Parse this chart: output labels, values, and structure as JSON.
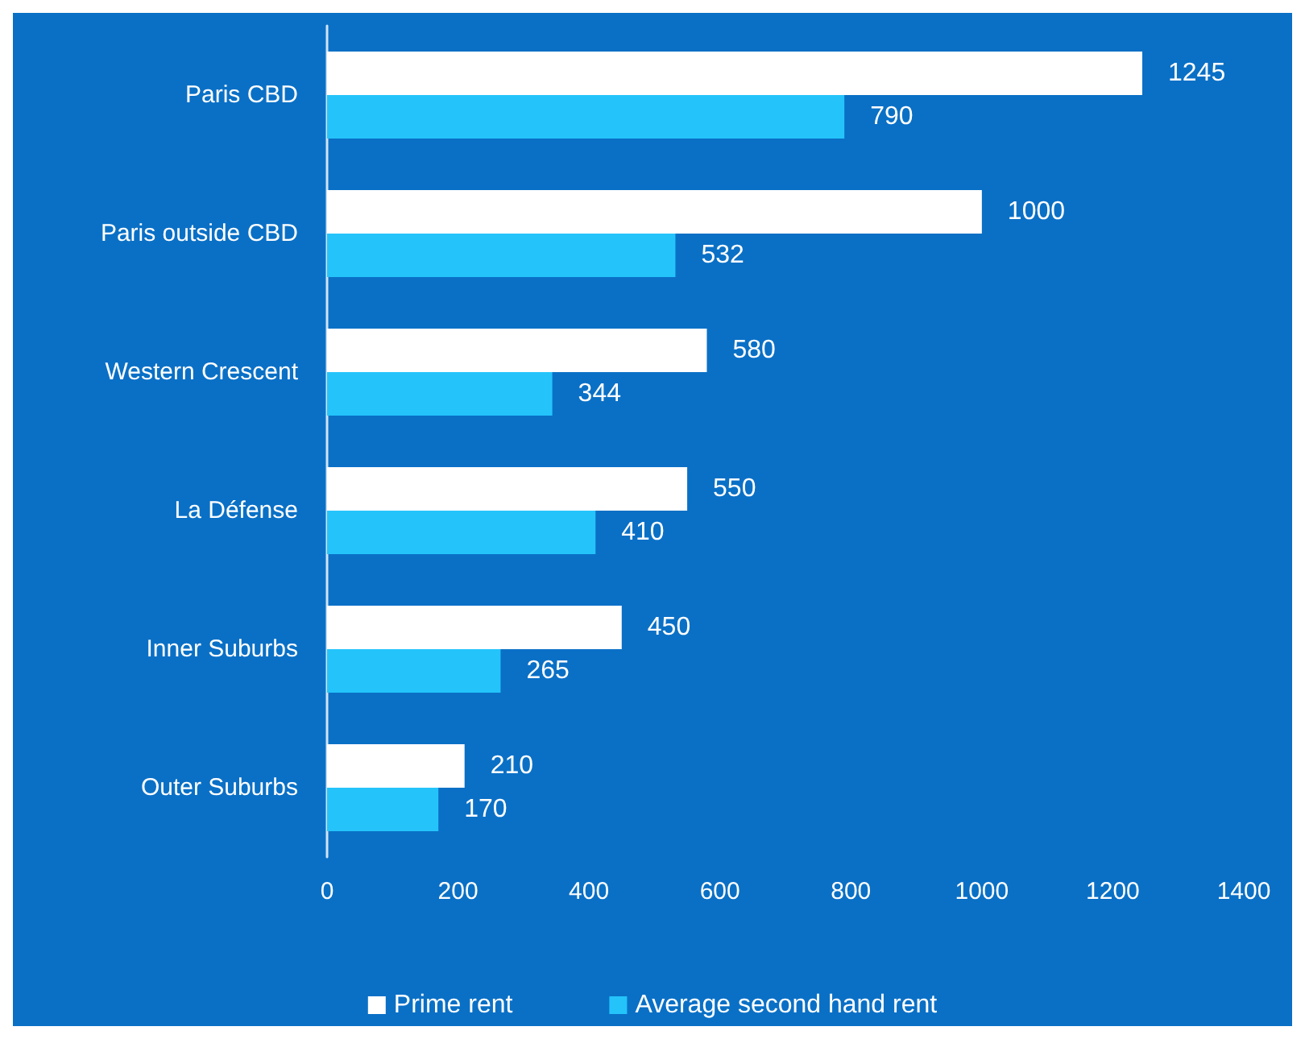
{
  "chart_data": {
    "type": "bar",
    "orientation": "horizontal",
    "categories": [
      "Paris CBD",
      "Paris outside CBD",
      "Western Crescent",
      "La Défense",
      "Inner Suburbs",
      "Outer Suburbs"
    ],
    "series": [
      {
        "name": "Prime rent",
        "color": "#ffffff",
        "values": [
          1245,
          1000,
          580,
          550,
          450,
          210
        ]
      },
      {
        "name": "Average second hand rent",
        "color": "#24c4fb",
        "values": [
          790,
          532,
          344,
          410,
          265,
          170
        ]
      }
    ],
    "xlim": [
      0,
      1400
    ],
    "xticks": [
      0,
      200,
      400,
      600,
      800,
      1000,
      1200,
      1400
    ],
    "grid": false,
    "legend": "bottom",
    "data_labels": true
  }
}
